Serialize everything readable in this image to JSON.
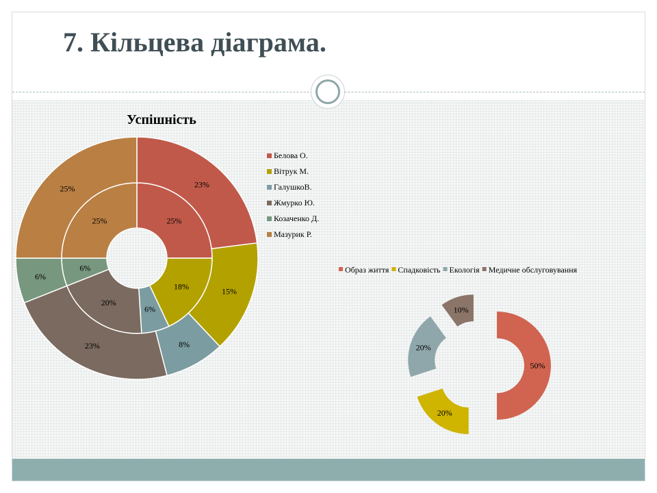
{
  "slide": {
    "title": "7.  Кільцева діаграма."
  },
  "chart_data": [
    {
      "type": "doughnut",
      "title": "Успішність",
      "categories": [
        "Белова О.",
        "Вітрук М.",
        "ГалушкоВ.",
        "Жмурко Ю.",
        "Козаченко Д.",
        "Мазурик Р."
      ],
      "colors": [
        "#c1594a",
        "#b3a100",
        "#7b9ca0",
        "#7a6a5f",
        "#77977e",
        "#b97f43"
      ],
      "series": [
        {
          "ring": "inner",
          "values": [
            25,
            18,
            6,
            20,
            6,
            25
          ],
          "labels": [
            "25%",
            "18%",
            "6%",
            "20%",
            "6%",
            "25%"
          ]
        },
        {
          "ring": "outer",
          "values": [
            23,
            15,
            8,
            23,
            6,
            25
          ],
          "labels": [
            "23%",
            "15%",
            "8%",
            "23%",
            "6%",
            "25%"
          ]
        }
      ],
      "legend_position": "right"
    },
    {
      "type": "doughnut",
      "exploded": true,
      "categories": [
        "Образ життя",
        "Спадковість",
        "Екологія",
        "Медичне обслуговування"
      ],
      "colors": [
        "#d06450",
        "#cfb400",
        "#8fa7aa",
        "#8b7468"
      ],
      "values": [
        50,
        20,
        20,
        10
      ],
      "labels": [
        "50%",
        "20%",
        "20%",
        "10%"
      ],
      "legend_position": "top"
    }
  ]
}
